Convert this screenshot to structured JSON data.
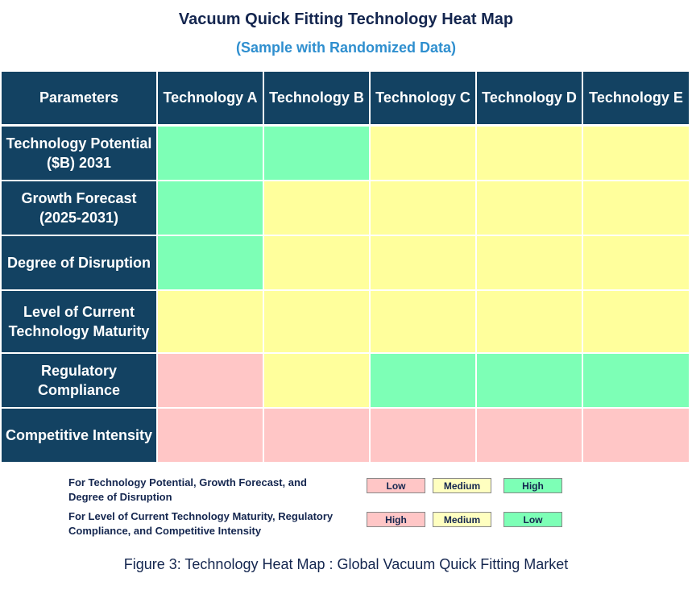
{
  "header": {
    "title": "Vacuum Quick Fitting Technology Heat Map",
    "subtitle": "(Sample with Randomized Data)"
  },
  "table": {
    "columns": [
      "Parameters",
      "Technology A",
      "Technology B",
      "Technology C",
      "Technology D",
      "Technology E"
    ],
    "rows": [
      {
        "label": "Technology Potential ($B) 2031",
        "colors": [
          "#7dffb6",
          "#7dffb6",
          "#ffff9c",
          "#ffff9c",
          "#ffff9c"
        ]
      },
      {
        "label": "Growth Forecast (2025-2031)",
        "colors": [
          "#7dffb6",
          "#ffff9c",
          "#ffff9c",
          "#ffff9c",
          "#ffff9c"
        ]
      },
      {
        "label": "Degree of Disruption",
        "colors": [
          "#7dffb6",
          "#ffff9c",
          "#ffff9c",
          "#ffff9c",
          "#ffff9c"
        ]
      },
      {
        "label": "Level of Current Technology Maturity",
        "colors": [
          "#ffff9c",
          "#ffff9c",
          "#ffff9c",
          "#ffff9c",
          "#ffff9c"
        ]
      },
      {
        "label": "Regulatory Compliance",
        "colors": [
          "#ffc6c6",
          "#ffff9c",
          "#7dffb6",
          "#7dffb6",
          "#7dffb6"
        ]
      },
      {
        "label": "Competitive Intensity",
        "colors": [
          "#ffc6c6",
          "#ffc6c6",
          "#ffc6c6",
          "#ffc6c6",
          "#ffc6c6"
        ]
      }
    ]
  },
  "legend": [
    {
      "text": "For Technology Potential, Growth Forecast, and Degree of Disruption",
      "items": [
        {
          "label": "Low",
          "color": "#ffc6c6"
        },
        {
          "label": "Medium",
          "color": "#ffffc0"
        },
        {
          "label": "High",
          "color": "#7dffb6"
        }
      ]
    },
    {
      "text": "For Level of Current Technology Maturity, Regulatory Compliance, and Competitive Intensity",
      "items": [
        {
          "label": "High",
          "color": "#ffc6c6"
        },
        {
          "label": "Medium",
          "color": "#ffffc0"
        },
        {
          "label": "Low",
          "color": "#7dffb6"
        }
      ]
    }
  ],
  "caption": "Figure 3: Technology Heat Map : Global Vacuum Quick Fitting Market"
}
